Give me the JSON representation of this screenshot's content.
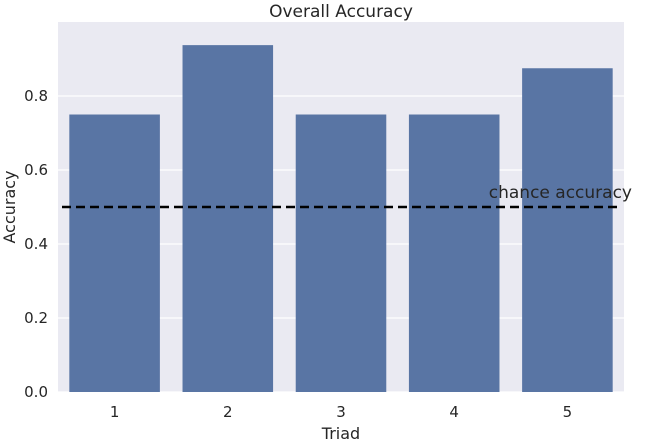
{
  "chart_data": {
    "type": "bar",
    "title": "Overall Accuracy",
    "xlabel": "Triad",
    "ylabel": "Accuracy",
    "categories": [
      "1",
      "2",
      "3",
      "4",
      "5"
    ],
    "values": [
      0.75,
      0.9375,
      0.75,
      0.75,
      0.875
    ],
    "ylim": [
      0,
      1.0
    ],
    "yticks": [
      0.0,
      0.2,
      0.4,
      0.6,
      0.8
    ],
    "ytick_labels": [
      "0.0",
      "0.2",
      "0.4",
      "0.6",
      "0.8"
    ],
    "grid": true,
    "bar_color": "#5975a4",
    "background_color": "#eaeaf2",
    "reference_line": {
      "value": 0.5,
      "label": "chance accuracy",
      "style": "dashed",
      "color": "#000000"
    }
  }
}
